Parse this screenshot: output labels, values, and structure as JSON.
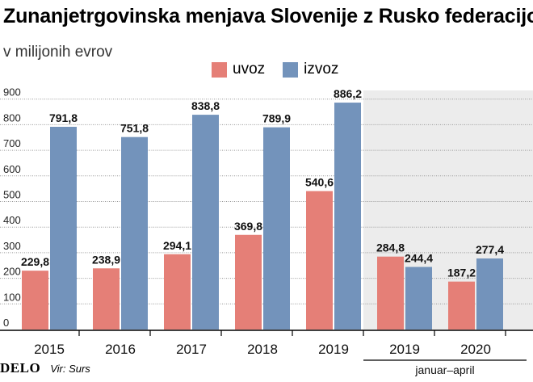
{
  "title": "Zunanjetrgovinska menjava Slovenije z Rusko federacijo",
  "subtitle": "v milijonih evrov",
  "logo": "DELO",
  "source": "Vir: Surs",
  "colors": {
    "uvoz": "#e57f77",
    "izvoz": "#7393bb",
    "shade": "#ececec",
    "grid": "#999999"
  },
  "chart_data": {
    "type": "bar",
    "categories": [
      "2015",
      "2016",
      "2017",
      "2018",
      "2019",
      "2019",
      "2020"
    ],
    "group_label": "januar–april",
    "group_categories": [
      5,
      6
    ],
    "series": [
      {
        "name": "uvoz",
        "values": [
          229.8,
          238.9,
          294.1,
          369.8,
          540.6,
          284.8,
          187.2
        ]
      },
      {
        "name": "izvoz",
        "values": [
          791.8,
          751.8,
          838.8,
          789.9,
          886.2,
          244.4,
          277.4
        ]
      }
    ],
    "value_labels": {
      "uvoz": [
        "229,8",
        "238,9",
        "294,1",
        "369,8",
        "540,6",
        "284,8",
        "187,2"
      ],
      "izvoz": [
        "791,8",
        "751,8",
        "838,8",
        "789,9",
        "886,2",
        "244,4",
        "277,4"
      ]
    },
    "yticks": [
      0,
      100,
      200,
      300,
      400,
      500,
      600,
      700,
      800,
      900
    ],
    "ylim": [
      0,
      1000
    ],
    "grid": true,
    "legend": "top"
  }
}
